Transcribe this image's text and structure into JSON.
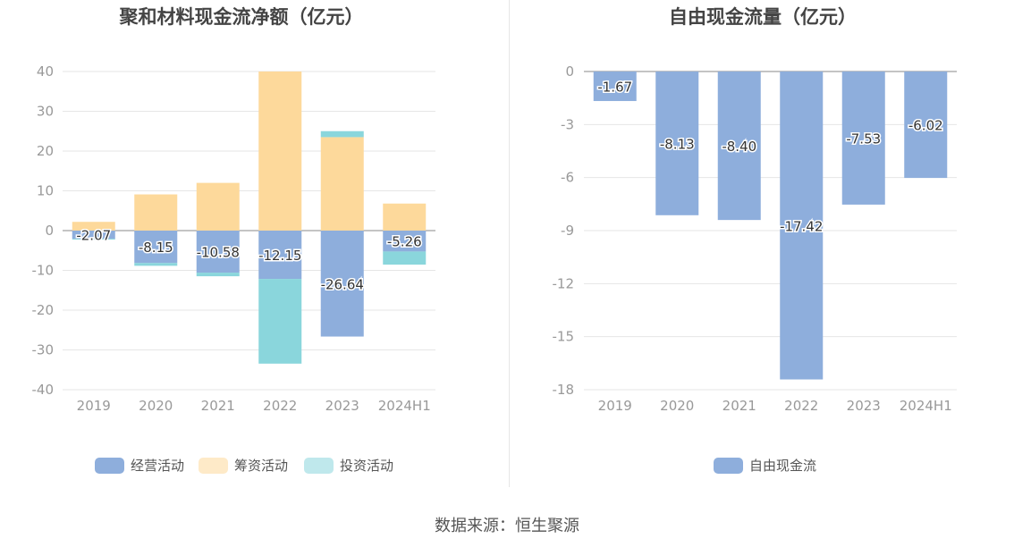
{
  "colors": {
    "operating": "#8eaedc",
    "financing": "#fdd99b",
    "investing": "#8ad6dc",
    "free_cash": "#8eaedc",
    "grid": "#e6e6e6",
    "axis_text": "#999999",
    "title_text": "#444444"
  },
  "source_label": "数据来源：恒生聚源",
  "chart_data": [
    {
      "type": "bar",
      "stacked": true,
      "title": "聚和材料现金流净额（亿元）",
      "categories": [
        "2019",
        "2020",
        "2021",
        "2022",
        "2023",
        "2024H1"
      ],
      "ylim": [
        -40,
        40
      ],
      "yticks": [
        40,
        30,
        20,
        10,
        0,
        -10,
        -20,
        -30,
        -40
      ],
      "legend_position": "bottom-center",
      "series": [
        {
          "name": "经营活动",
          "color_key": "operating",
          "values": [
            -2.07,
            -8.15,
            -10.58,
            -12.15,
            -26.64,
            -5.26
          ],
          "labels": [
            "-2.07",
            "-8.15",
            "-10.58",
            "-12.15",
            "-26.64",
            "-5.26"
          ]
        },
        {
          "name": "筹资活动",
          "color_key": "financing",
          "values": [
            2.2,
            9.1,
            12.0,
            40.0,
            23.5,
            6.8
          ]
        },
        {
          "name": "投资活动",
          "color_key": "investing",
          "values": [
            -0.2,
            -0.7,
            -0.9,
            -21.3,
            1.5,
            -3.3
          ]
        }
      ]
    },
    {
      "type": "bar",
      "title": "自由现金流量（亿元）",
      "categories": [
        "2019",
        "2020",
        "2021",
        "2022",
        "2023",
        "2024H1"
      ],
      "ylim": [
        -18,
        0
      ],
      "yticks": [
        0,
        -3,
        -6,
        -9,
        -12,
        -15,
        -18
      ],
      "legend_position": "bottom-center",
      "series": [
        {
          "name": "自由现金流",
          "color_key": "free_cash",
          "values": [
            -1.67,
            -8.13,
            -8.4,
            -17.42,
            -7.53,
            -6.02
          ],
          "labels": [
            "-1.67",
            "-8.13",
            "-8.40",
            "-17.42",
            "-7.53",
            "-6.02"
          ]
        }
      ]
    }
  ]
}
